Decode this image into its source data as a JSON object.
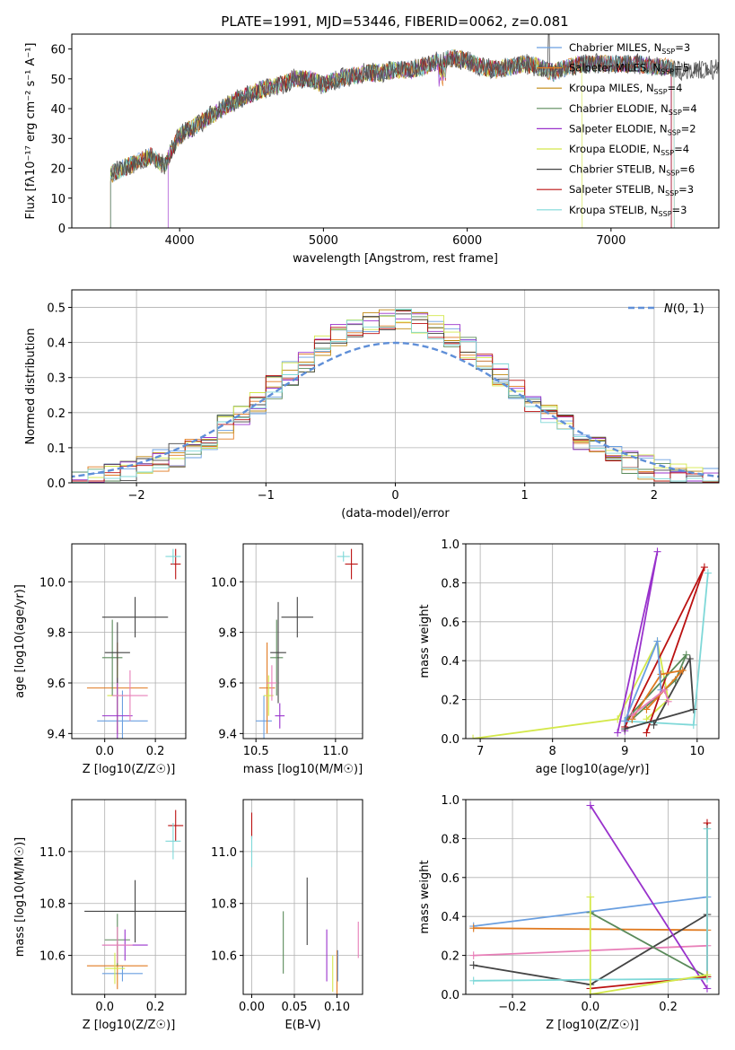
{
  "title": "PLATE=1991, MJD=53446, FIBERID=0062, z=0.081",
  "colors": {
    "Chabrier MILES": "#6a9fe0",
    "Salpeter MILES": "#e07a20",
    "Kroupa MILES": "#c08810",
    "Chabrier ELODIE": "#5a8a5a",
    "Salpeter ELODIE": "#9932cc",
    "Kroupa ELODIE": "#d4e84a",
    "Chabrier STELIB": "#444444",
    "Salpeter STELIB": "#bb1111",
    "Kroupa STELIB": "#7fd8d8",
    "MILES Kroupa weight": "#e87fb8"
  },
  "chart_data": [
    {
      "id": "spectrum",
      "type": "line",
      "xlabel": "wavelength [Angstrom, rest frame]",
      "ylabel": "Flux [fλ10⁻¹⁷ erg cm⁻² s⁻¹ A⁻¹]",
      "xlim": [
        3250,
        7750
      ],
      "ylim": [
        0,
        65
      ],
      "xticks": [
        "4000",
        "5000",
        "6000",
        "7000",
        "8000"
      ],
      "yticks": [
        "0",
        "10",
        "20",
        "30",
        "40",
        "50",
        "60"
      ],
      "legend": [
        "Chabrier MILES, N_SSP=3",
        "Salpeter MILES, N_SSP=5",
        "Kroupa MILES, N_SSP=4",
        "Chabrier ELODIE, N_SSP=4",
        "Salpeter ELODIE, N_SSP=2",
        "Kroupa ELODIE, N_SSP=4",
        "Chabrier STELIB, N_SSP=6",
        "Salpeter STELIB, N_SSP=3",
        "Kroupa STELIB, N_SSP=3"
      ],
      "legend_loc": "upper right",
      "observed": {
        "x": [
          3520,
          3600,
          3700,
          3800,
          3900,
          3950,
          4000,
          4100,
          4200,
          4300,
          4400,
          4500,
          4600,
          4700,
          4800,
          4900,
          5000,
          5100,
          5200,
          5300,
          5400,
          5500,
          5600,
          5700,
          5800,
          5900,
          6000,
          6100,
          6200,
          6300,
          6400,
          6500,
          6600,
          6700,
          6800,
          6900,
          7000,
          7100,
          7200,
          7300,
          7400,
          7450
        ],
        "y": [
          18,
          20,
          22,
          24,
          21,
          27,
          31,
          34,
          37,
          40,
          43,
          45,
          47,
          48,
          50,
          50,
          48,
          50,
          51,
          52,
          52,
          53,
          53,
          54,
          56,
          57,
          56,
          54,
          53,
          54,
          55,
          54,
          52,
          54,
          55,
          55,
          55,
          55,
          55,
          54,
          54,
          53
        ]
      },
      "dropouts": [
        3520,
        3920,
        6800,
        7420
      ],
      "grid": false
    },
    {
      "id": "residuals",
      "type": "histogram",
      "xlabel": "(data-model)/error",
      "ylabel": "Normed distribution",
      "xlim": [
        -2.5,
        2.5
      ],
      "ylim": [
        0,
        0.55
      ],
      "xticks": [
        "−2",
        "−1",
        "0",
        "1",
        "2"
      ],
      "yticks": [
        "0.0",
        "0.1",
        "0.2",
        "0.3",
        "0.4",
        "0.5"
      ],
      "bin_width": 0.125,
      "reference_label": "N(0,1)",
      "grid": true,
      "series": [
        {
          "model": "Chabrier MILES",
          "values": [
            0.02,
            0.03,
            0.04,
            0.05,
            0.05,
            0.08,
            0.1,
            0.12,
            0.15,
            0.18,
            0.22,
            0.26,
            0.29,
            0.32,
            0.35,
            0.38,
            0.4,
            0.42,
            0.44,
            0.45,
            0.46,
            0.47,
            0.48,
            0.49,
            0.48,
            0.47,
            0.46,
            0.44,
            0.42,
            0.4,
            0.38,
            0.35,
            0.32,
            0.29,
            0.26,
            0.22,
            0.19,
            0.16,
            0.13,
            0.1,
            0.08,
            0.06
          ]
        },
        {
          "model": "Salpeter MILES",
          "values": [
            0.02,
            0.03,
            0.04,
            0.05,
            0.06,
            0.07,
            0.09,
            0.12,
            0.15,
            0.19,
            0.22,
            0.26,
            0.3,
            0.33,
            0.36,
            0.39,
            0.41,
            0.43,
            0.45,
            0.46,
            0.47,
            0.48,
            0.47,
            0.46,
            0.45,
            0.44,
            0.43,
            0.41,
            0.39,
            0.36,
            0.33,
            0.3,
            0.27,
            0.24,
            0.2,
            0.17,
            0.14,
            0.11,
            0.09,
            0.07,
            0.05,
            0.04
          ]
        },
        {
          "model": "Kroupa STELIB",
          "values": [
            0.02,
            0.03,
            0.03,
            0.04,
            0.05,
            0.07,
            0.09,
            0.11,
            0.14,
            0.17,
            0.21,
            0.25,
            0.28,
            0.32,
            0.35,
            0.38,
            0.41,
            0.43,
            0.45,
            0.47,
            0.49,
            0.52,
            0.5,
            0.48,
            0.46,
            0.44,
            0.42,
            0.4,
            0.37,
            0.34,
            0.31,
            0.28,
            0.24,
            0.21,
            0.18,
            0.15,
            0.12,
            0.1,
            0.08,
            0.06,
            0.04,
            0.03
          ]
        }
      ]
    },
    {
      "id": "age-vs-Z",
      "type": "scatter",
      "xlabel": "Z [log10(Z/Z☉)]",
      "ylabel": "age  [log10(age/yr)]",
      "xlim": [
        -0.13,
        0.32
      ],
      "ylim": [
        9.38,
        10.15
      ],
      "xticks": [
        "0.0",
        "0.2"
      ],
      "yticks": [
        "9.4",
        "9.6",
        "9.8",
        "10.0"
      ],
      "grid": true
    },
    {
      "id": "age-vs-mass",
      "type": "scatter",
      "xlabel": "mass [log10(M/M☉)]",
      "ylabel": "",
      "xlim": [
        10.42,
        11.17
      ],
      "ylim": [
        9.38,
        10.15
      ],
      "xticks": [
        "10.5",
        "11.0"
      ],
      "yticks": [
        "9.4",
        "9.6",
        "9.8",
        "10.0"
      ],
      "grid": true
    },
    {
      "id": "weight-vs-age",
      "type": "line",
      "xlabel": "age  [log10(age/yr)]",
      "ylabel": "mass weight",
      "xlim": [
        6.8,
        10.3
      ],
      "ylim": [
        0,
        1.0
      ],
      "xticks": [
        "7",
        "8",
        "9",
        "10"
      ],
      "yticks": [
        "0.0",
        "0.2",
        "0.4",
        "0.6",
        "0.8",
        "1.0"
      ],
      "grid": true
    },
    {
      "id": "mass-vs-Z",
      "type": "scatter",
      "xlabel": "Z [log10(Z/Z☉)]",
      "ylabel": "mass [log10(M/M☉)]",
      "xlim": [
        -0.13,
        0.32
      ],
      "ylim": [
        10.45,
        11.2
      ],
      "xticks": [
        "0.0",
        "0.2"
      ],
      "yticks": [
        "10.6",
        "10.8",
        "11.0"
      ],
      "grid": true
    },
    {
      "id": "mass-vs-ebv",
      "type": "scatter",
      "xlabel": "E(B-V)",
      "ylabel": "",
      "xlim": [
        -0.01,
        0.13
      ],
      "ylim": [
        10.45,
        11.2
      ],
      "xticks": [
        "0.00",
        "0.05",
        "0.10"
      ],
      "yticks": [
        "10.6",
        "10.8",
        "11.0"
      ],
      "grid": true
    },
    {
      "id": "weight-vs-Z",
      "type": "line",
      "xlabel": "Z [log10(Z/Z☉)]",
      "ylabel": "mass weight",
      "xlim": [
        -0.32,
        0.33
      ],
      "ylim": [
        0,
        1.0
      ],
      "xticks": [
        "−0.2",
        "0.0",
        "0.2"
      ],
      "yticks": [
        "0.0",
        "0.2",
        "0.4",
        "0.6",
        "0.8",
        "1.0"
      ],
      "grid": true
    }
  ]
}
